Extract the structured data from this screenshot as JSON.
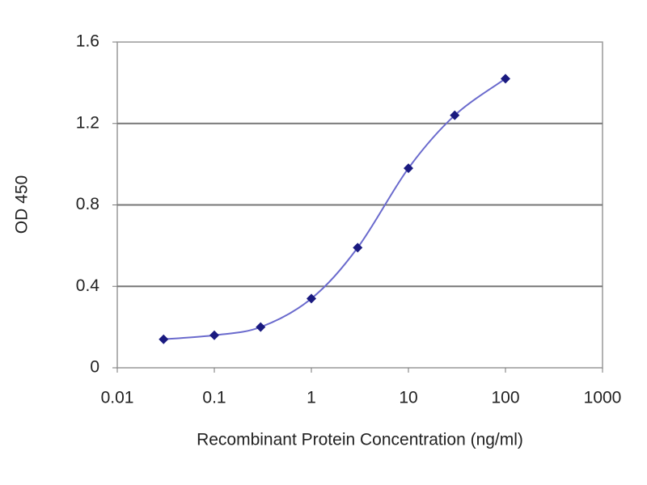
{
  "chart_data": {
    "type": "line",
    "xlabel": "Recombinant Protein Concentration (ng/ml)",
    "ylabel": "OD 450",
    "x": [
      0.03,
      0.1,
      0.3,
      1,
      3,
      10,
      30,
      100
    ],
    "values": [
      0.14,
      0.16,
      0.2,
      0.34,
      0.59,
      0.98,
      1.24,
      1.42
    ],
    "color": "#6a6acd",
    "marker_color": "#1a1a80",
    "xscale": "log",
    "xlim": [
      0.01,
      1000
    ],
    "xticks": [
      0.01,
      0.1,
      1,
      10,
      100,
      1000
    ],
    "ylim": [
      0,
      1.6
    ],
    "yticks": [
      0,
      0.4,
      0.8,
      1.2,
      1.6
    ],
    "grid": true
  }
}
